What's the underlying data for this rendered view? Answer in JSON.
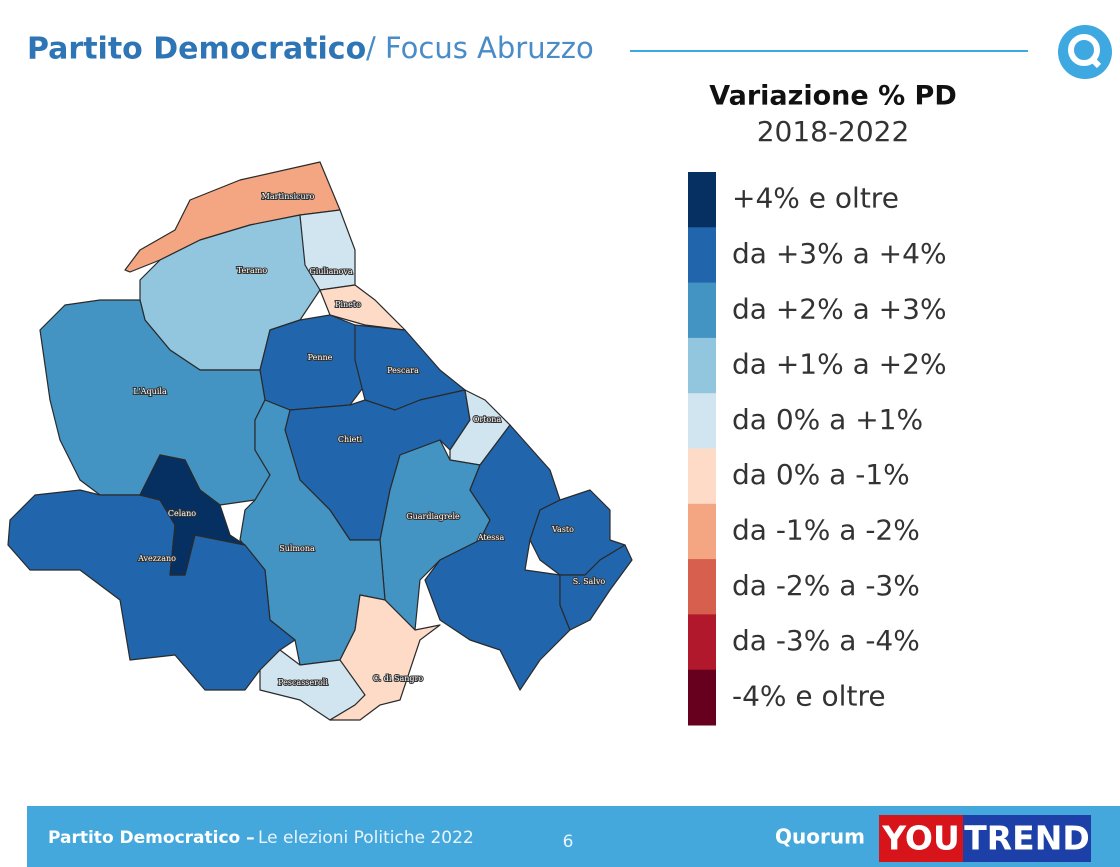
{
  "header": {
    "title": "Partito Democratico",
    "subtitle": "/ Focus Abruzzo"
  },
  "legend": {
    "title": "Variazione % PD",
    "subtitle": "2018-2022",
    "items": [
      {
        "label": "+4% e oltre",
        "color": "#053061"
      },
      {
        "label": "da +3% a +4%",
        "color": "#2166ac"
      },
      {
        "label": "da +2% a +3%",
        "color": "#4393c3"
      },
      {
        "label": "da +1% a +2%",
        "color": "#92c5de"
      },
      {
        "label": "da 0% a +1%",
        "color": "#d1e5f0"
      },
      {
        "label": "da 0% a -1%",
        "color": "#fddbc7"
      },
      {
        "label": "da -1% a -2%",
        "color": "#f4a582"
      },
      {
        "label": "da -2% a -3%",
        "color": "#d6604d"
      },
      {
        "label": "da -3% a -4%",
        "color": "#b2182b"
      },
      {
        "label": "-4% e oltre",
        "color": "#67001f"
      }
    ]
  },
  "map": {
    "regions": [
      {
        "label": "Martinsicuro",
        "color": "#f4a582"
      },
      {
        "label": "Teramo",
        "color": "#92c5de"
      },
      {
        "label": "Giulianova",
        "color": "#d1e5f0"
      },
      {
        "label": "Pineto",
        "color": "#fddbc7"
      },
      {
        "label": "Penne",
        "color": "#2166ac"
      },
      {
        "label": "Pescara",
        "color": "#2166ac"
      },
      {
        "label": "L'Aquila",
        "color": "#4393c3"
      },
      {
        "label": "Chieti",
        "color": "#2166ac"
      },
      {
        "label": "Ortona",
        "color": "#d1e5f0"
      },
      {
        "label": "Guardiagrele",
        "color": "#4393c3"
      },
      {
        "label": "Atessa",
        "color": "#2166ac"
      },
      {
        "label": "Vasto",
        "color": "#2166ac"
      },
      {
        "label": "S. Salvo",
        "color": "#2166ac"
      },
      {
        "label": "Sulmona",
        "color": "#4393c3"
      },
      {
        "label": "Celano",
        "color": "#053061"
      },
      {
        "label": "Avezzano",
        "color": "#2166ac"
      },
      {
        "label": "Pescasseroli",
        "color": "#d1e5f0"
      },
      {
        "label": "C. di Sangro",
        "color": "#fddbc7"
      }
    ]
  },
  "footer": {
    "title": "Partito Democratico –",
    "subtitle": "Le elezioni Politiche 2022",
    "page": "6",
    "logo": "Quorum",
    "brand": [
      "YOU",
      "TREND"
    ]
  }
}
